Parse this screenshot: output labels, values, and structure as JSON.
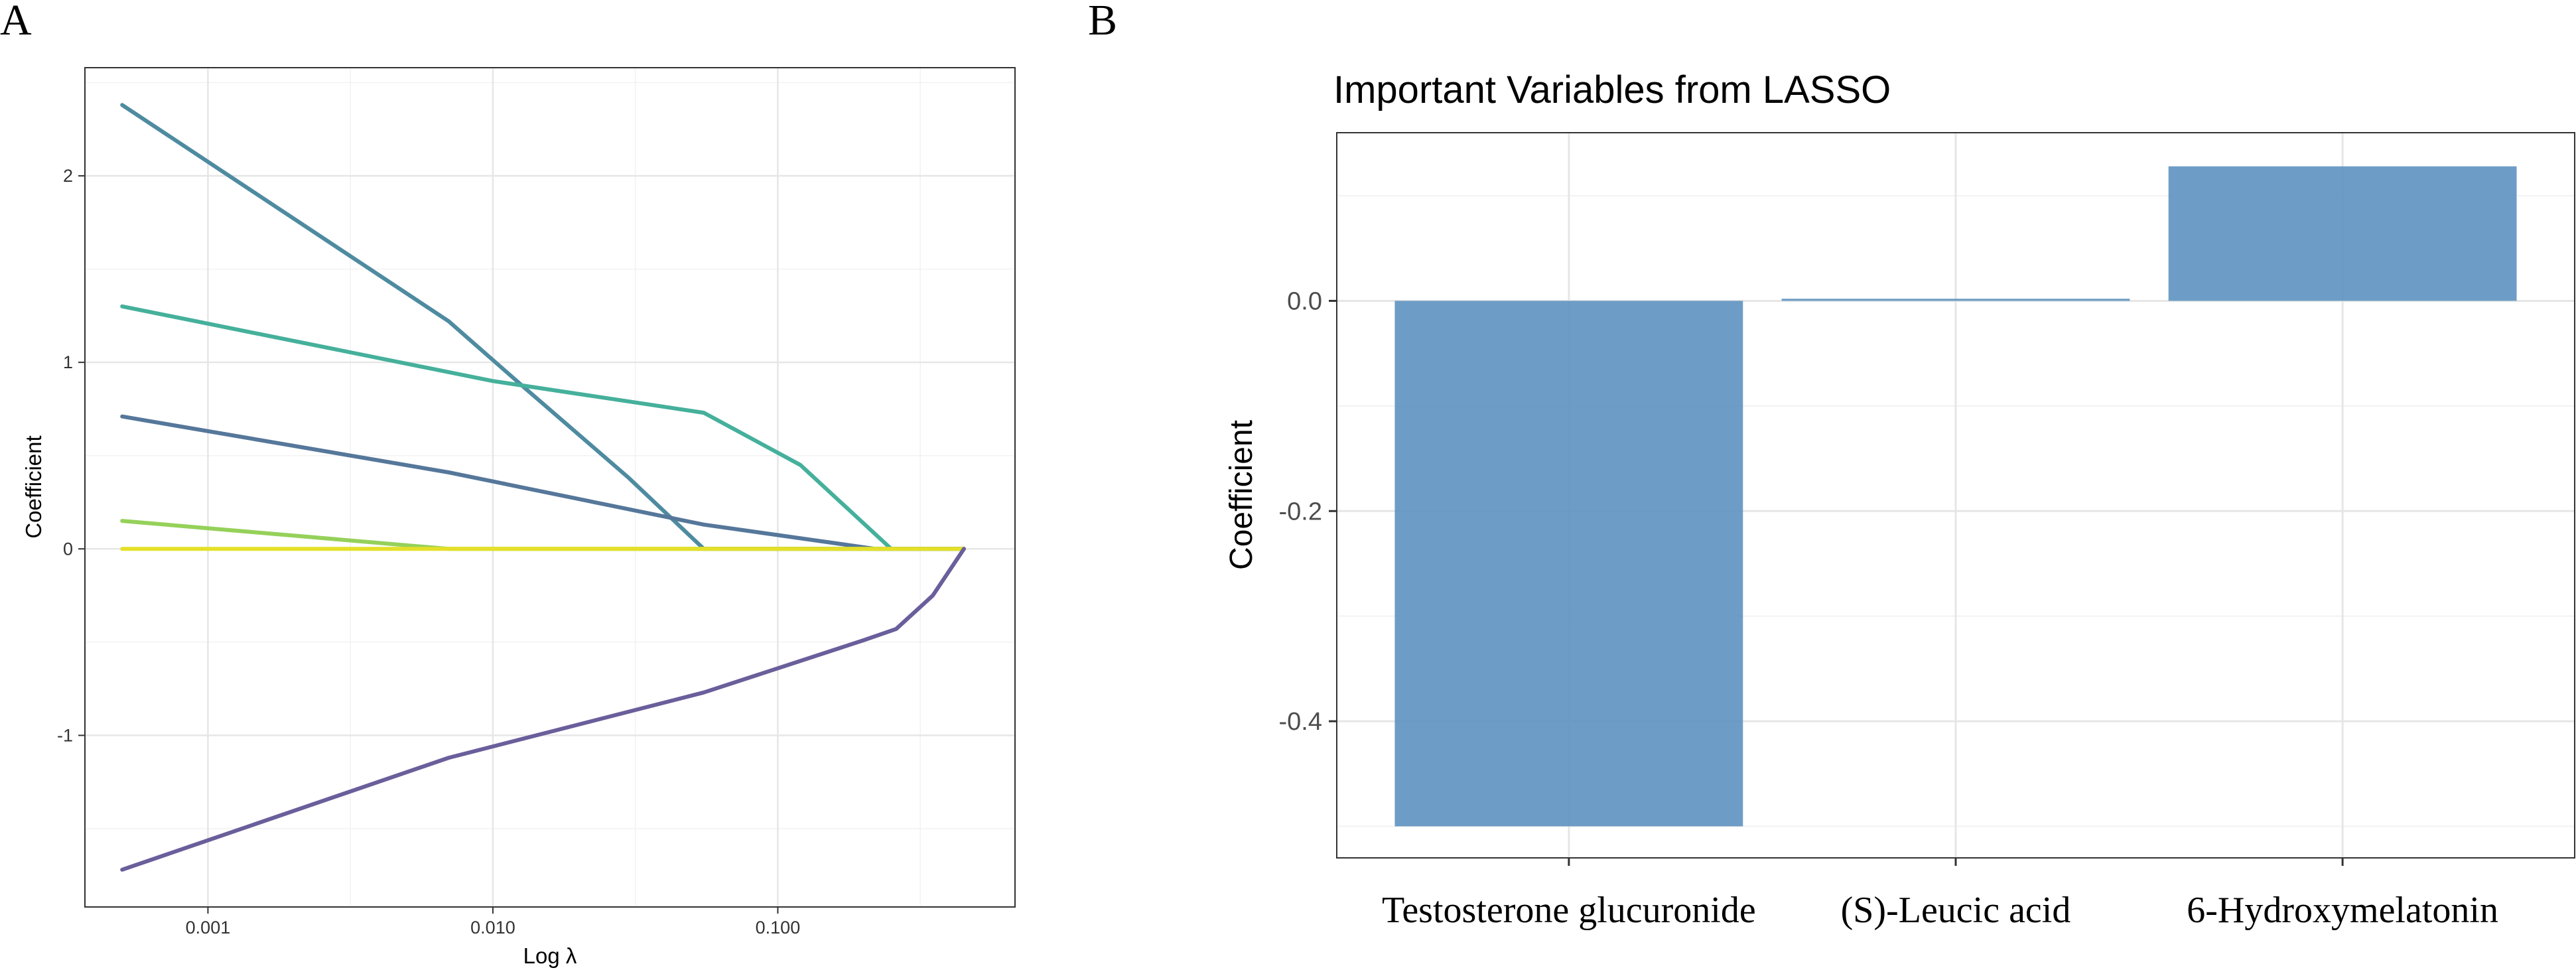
{
  "panel_labels": [
    "A",
    "B"
  ],
  "chart_data": [
    {
      "type": "line",
      "title": "",
      "xlabel": "Log λ",
      "ylabel": "Coefficient",
      "x_scale": "log10",
      "xlim": [
        0.00037,
        0.68
      ],
      "ylim": [
        -1.92,
        2.58
      ],
      "x_ticks": [
        0.001,
        0.01,
        0.1
      ],
      "x_tick_labels": [
        "0.001",
        "0.010",
        "0.100"
      ],
      "y_ticks": [
        -1,
        0,
        1,
        2
      ],
      "y_tick_labels": [
        "-1",
        "0",
        "1",
        "2"
      ],
      "grid": true,
      "series": [
        {
          "name": "path-1",
          "color": "#4e8ba0",
          "points": [
            [
              0.0005,
              2.38
            ],
            [
              0.007,
              1.22
            ],
            [
              0.013,
              0.86
            ],
            [
              0.03,
              0.38
            ],
            [
              0.055,
              0.0
            ],
            [
              0.45,
              0.0
            ]
          ]
        },
        {
          "name": "path-2",
          "color": "#45b09b",
          "points": [
            [
              0.0005,
              1.3
            ],
            [
              0.01,
              0.9
            ],
            [
              0.055,
              0.73
            ],
            [
              0.12,
              0.45
            ],
            [
              0.25,
              0.0
            ],
            [
              0.45,
              0.0
            ]
          ]
        },
        {
          "name": "path-3",
          "color": "#55779a",
          "points": [
            [
              0.0005,
              0.71
            ],
            [
              0.007,
              0.41
            ],
            [
              0.055,
              0.13
            ],
            [
              0.22,
              0.0
            ],
            [
              0.45,
              0.0
            ]
          ]
        },
        {
          "name": "path-4",
          "color": "#95d15a",
          "points": [
            [
              0.0005,
              0.15
            ],
            [
              0.007,
              0.0
            ],
            [
              0.45,
              0.0
            ]
          ]
        },
        {
          "name": "path-5",
          "color": "#e4e028",
          "points": [
            [
              0.0005,
              0.0
            ],
            [
              0.45,
              0.0
            ]
          ]
        },
        {
          "name": "path-6",
          "color": "#6a5e9b",
          "points": [
            [
              0.0005,
              -1.72
            ],
            [
              0.007,
              -1.12
            ],
            [
              0.055,
              -0.77
            ],
            [
              0.2,
              -0.49
            ],
            [
              0.26,
              -0.43
            ],
            [
              0.35,
              -0.25
            ],
            [
              0.45,
              0.0
            ]
          ]
        }
      ]
    },
    {
      "type": "bar",
      "title": "Important Variables from LASSO",
      "xlabel": "",
      "ylabel": "Coefficient",
      "categories": [
        "Testosterone glucuronide",
        "(S)-Leucic acid",
        "6-Hydroxymelatonin"
      ],
      "values": [
        -0.5,
        0.002,
        0.128
      ],
      "ylim": [
        -0.53,
        0.16
      ],
      "y_ticks": [
        -0.4,
        -0.2,
        0.0
      ],
      "y_tick_labels": [
        "-0.4",
        "-0.2",
        "0.0"
      ],
      "bar_color": "#5d92c0",
      "grid": true
    }
  ]
}
